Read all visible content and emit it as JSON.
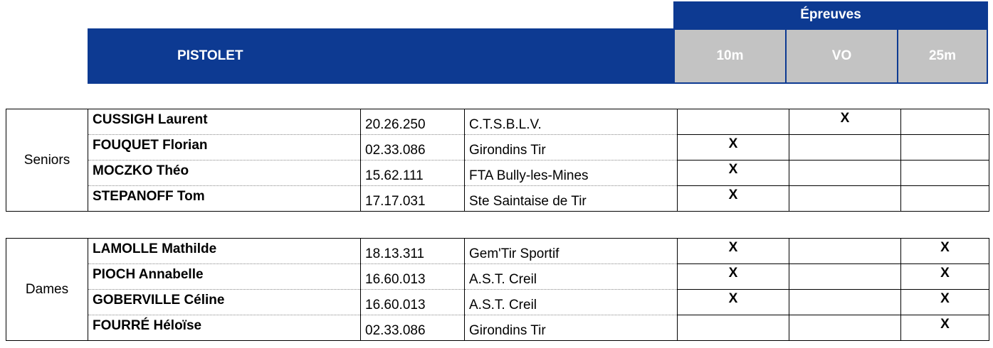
{
  "header": {
    "epreuves_label": "Épreuves",
    "discipline": "PISTOLET",
    "events": [
      "10m",
      "VO",
      "25m"
    ]
  },
  "groups": [
    {
      "category": "Seniors",
      "rows": [
        {
          "name": "CUSSIGH Laurent",
          "license": "20.26.250",
          "club": "C.T.S.B.L.V.",
          "e10m": "",
          "vo": "X",
          "e25m": ""
        },
        {
          "name": "FOUQUET Florian",
          "license": "02.33.086",
          "club": "Girondins Tir",
          "e10m": "X",
          "vo": "",
          "e25m": ""
        },
        {
          "name": "MOCZKO Théo",
          "license": "15.62.111",
          "club": "FTA Bully-les-Mines",
          "e10m": "X",
          "vo": "",
          "e25m": ""
        },
        {
          "name": "STEPANOFF Tom",
          "license": "17.17.031",
          "club": "Ste Saintaise de Tir",
          "e10m": "X",
          "vo": "",
          "e25m": ""
        }
      ]
    },
    {
      "category": "Dames",
      "rows": [
        {
          "name": "LAMOLLE Mathilde",
          "license": "18.13.311",
          "club": "Gem'Tir Sportif",
          "e10m": "X",
          "vo": "",
          "e25m": "X"
        },
        {
          "name": "PIOCH Annabelle",
          "license": "16.60.013",
          "club": "A.S.T. Creil",
          "e10m": "X",
          "vo": "",
          "e25m": "X"
        },
        {
          "name": "GOBERVILLE Céline",
          "license": "16.60.013",
          "club": "A.S.T. Creil",
          "e10m": "X",
          "vo": "",
          "e25m": "X"
        },
        {
          "name": "FOURRÉ Héloïse",
          "license": "02.33.086",
          "club": "Girondins Tir",
          "e10m": "",
          "vo": "",
          "e25m": "X"
        }
      ]
    }
  ]
}
